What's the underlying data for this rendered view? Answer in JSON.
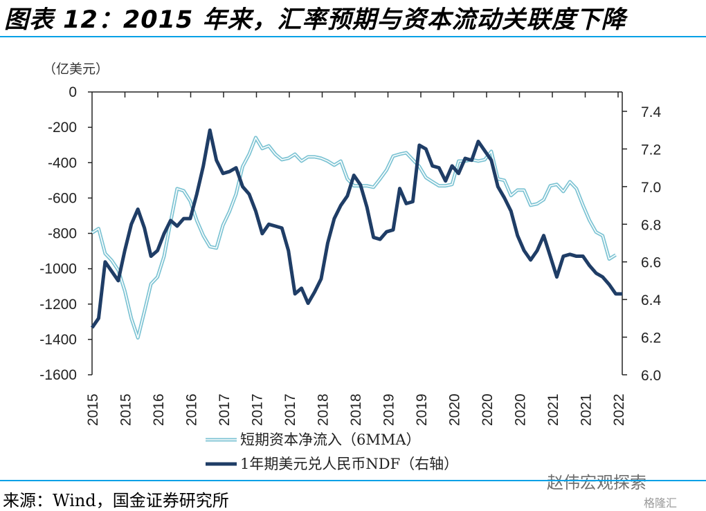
{
  "title": "图表 12：2015 年来，汇率预期与资本流动关联度下降",
  "source": "来源：Wind，国金证券研究所",
  "watermark": "赵伟宏观探索",
  "watermark_logo": "格隆汇",
  "colors": {
    "rule": "#00a0e6",
    "flow": "#7cc3d3",
    "ndf": "#1f3d66"
  },
  "chart_data": {
    "type": "line",
    "title": "2015 年来，汇率预期与资本流动关联度下降",
    "ylabel": "（亿美元）",
    "y2label": "",
    "ylim": [
      -1600,
      0
    ],
    "y2lim": [
      6.0,
      7.4
    ],
    "yticks": [
      "0",
      "-200",
      "-400",
      "-600",
      "-800",
      "-1000",
      "-1200",
      "-1400",
      "-1600"
    ],
    "y2ticks": [
      "7.4",
      "7.2",
      "7.0",
      "6.8",
      "6.6",
      "6.4",
      "6.2",
      "6.0"
    ],
    "xticklabels": [
      "2015",
      "2015",
      "2016",
      "2016",
      "2017",
      "2017",
      "2017",
      "2018",
      "2018",
      "2019",
      "2019",
      "2020",
      "2020",
      "2020",
      "2021",
      "2021",
      "2022"
    ],
    "legend_position": "bottom",
    "series": [
      {
        "name": "短期资本净流入（6MMA）",
        "axis": "left",
        "values": [
          -797,
          -773,
          -914,
          -953,
          -1008,
          -1125,
          -1281,
          -1391,
          -1242,
          -1086,
          -1047,
          -930,
          -734,
          -547,
          -559,
          -617,
          -727,
          -813,
          -875,
          -883,
          -754,
          -676,
          -578,
          -422,
          -352,
          -258,
          -320,
          -305,
          -352,
          -383,
          -375,
          -352,
          -391,
          -367,
          -367,
          -375,
          -391,
          -414,
          -391,
          -492,
          -531,
          -531,
          -531,
          -539,
          -492,
          -441,
          -363,
          -352,
          -344,
          -383,
          -422,
          -484,
          -508,
          -531,
          -531,
          -523,
          -391,
          -391,
          -383,
          -391,
          -383,
          -336,
          -492,
          -500,
          -586,
          -555,
          -555,
          -641,
          -633,
          -609,
          -531,
          -523,
          -563,
          -508,
          -547,
          -641,
          -727,
          -793,
          -813,
          -945,
          -922
        ]
      },
      {
        "name": "1年期美元兑人民币NDF（右轴）",
        "axis": "right",
        "values": [
          6.25,
          6.3,
          6.6,
          6.55,
          6.5,
          6.66,
          6.8,
          6.88,
          6.78,
          6.63,
          6.66,
          6.75,
          6.82,
          6.79,
          6.83,
          6.83,
          6.96,
          7.11,
          7.3,
          7.14,
          7.07,
          7.08,
          7.1,
          7.0,
          6.96,
          6.87,
          6.75,
          6.8,
          6.79,
          6.78,
          6.66,
          6.43,
          6.46,
          6.38,
          6.44,
          6.51,
          6.7,
          6.83,
          6.9,
          6.95,
          7.06,
          7.01,
          6.89,
          6.73,
          6.72,
          6.76,
          6.77,
          6.99,
          6.91,
          6.92,
          7.22,
          7.2,
          7.11,
          7.1,
          7.03,
          7.11,
          7.07,
          7.15,
          7.14,
          7.24,
          7.19,
          7.14,
          7.0,
          6.94,
          6.87,
          6.74,
          6.66,
          6.61,
          6.66,
          6.74,
          6.63,
          6.52,
          6.63,
          6.64,
          6.63,
          6.63,
          6.58,
          6.54,
          6.52,
          6.48,
          6.43,
          6.43
        ]
      }
    ]
  }
}
